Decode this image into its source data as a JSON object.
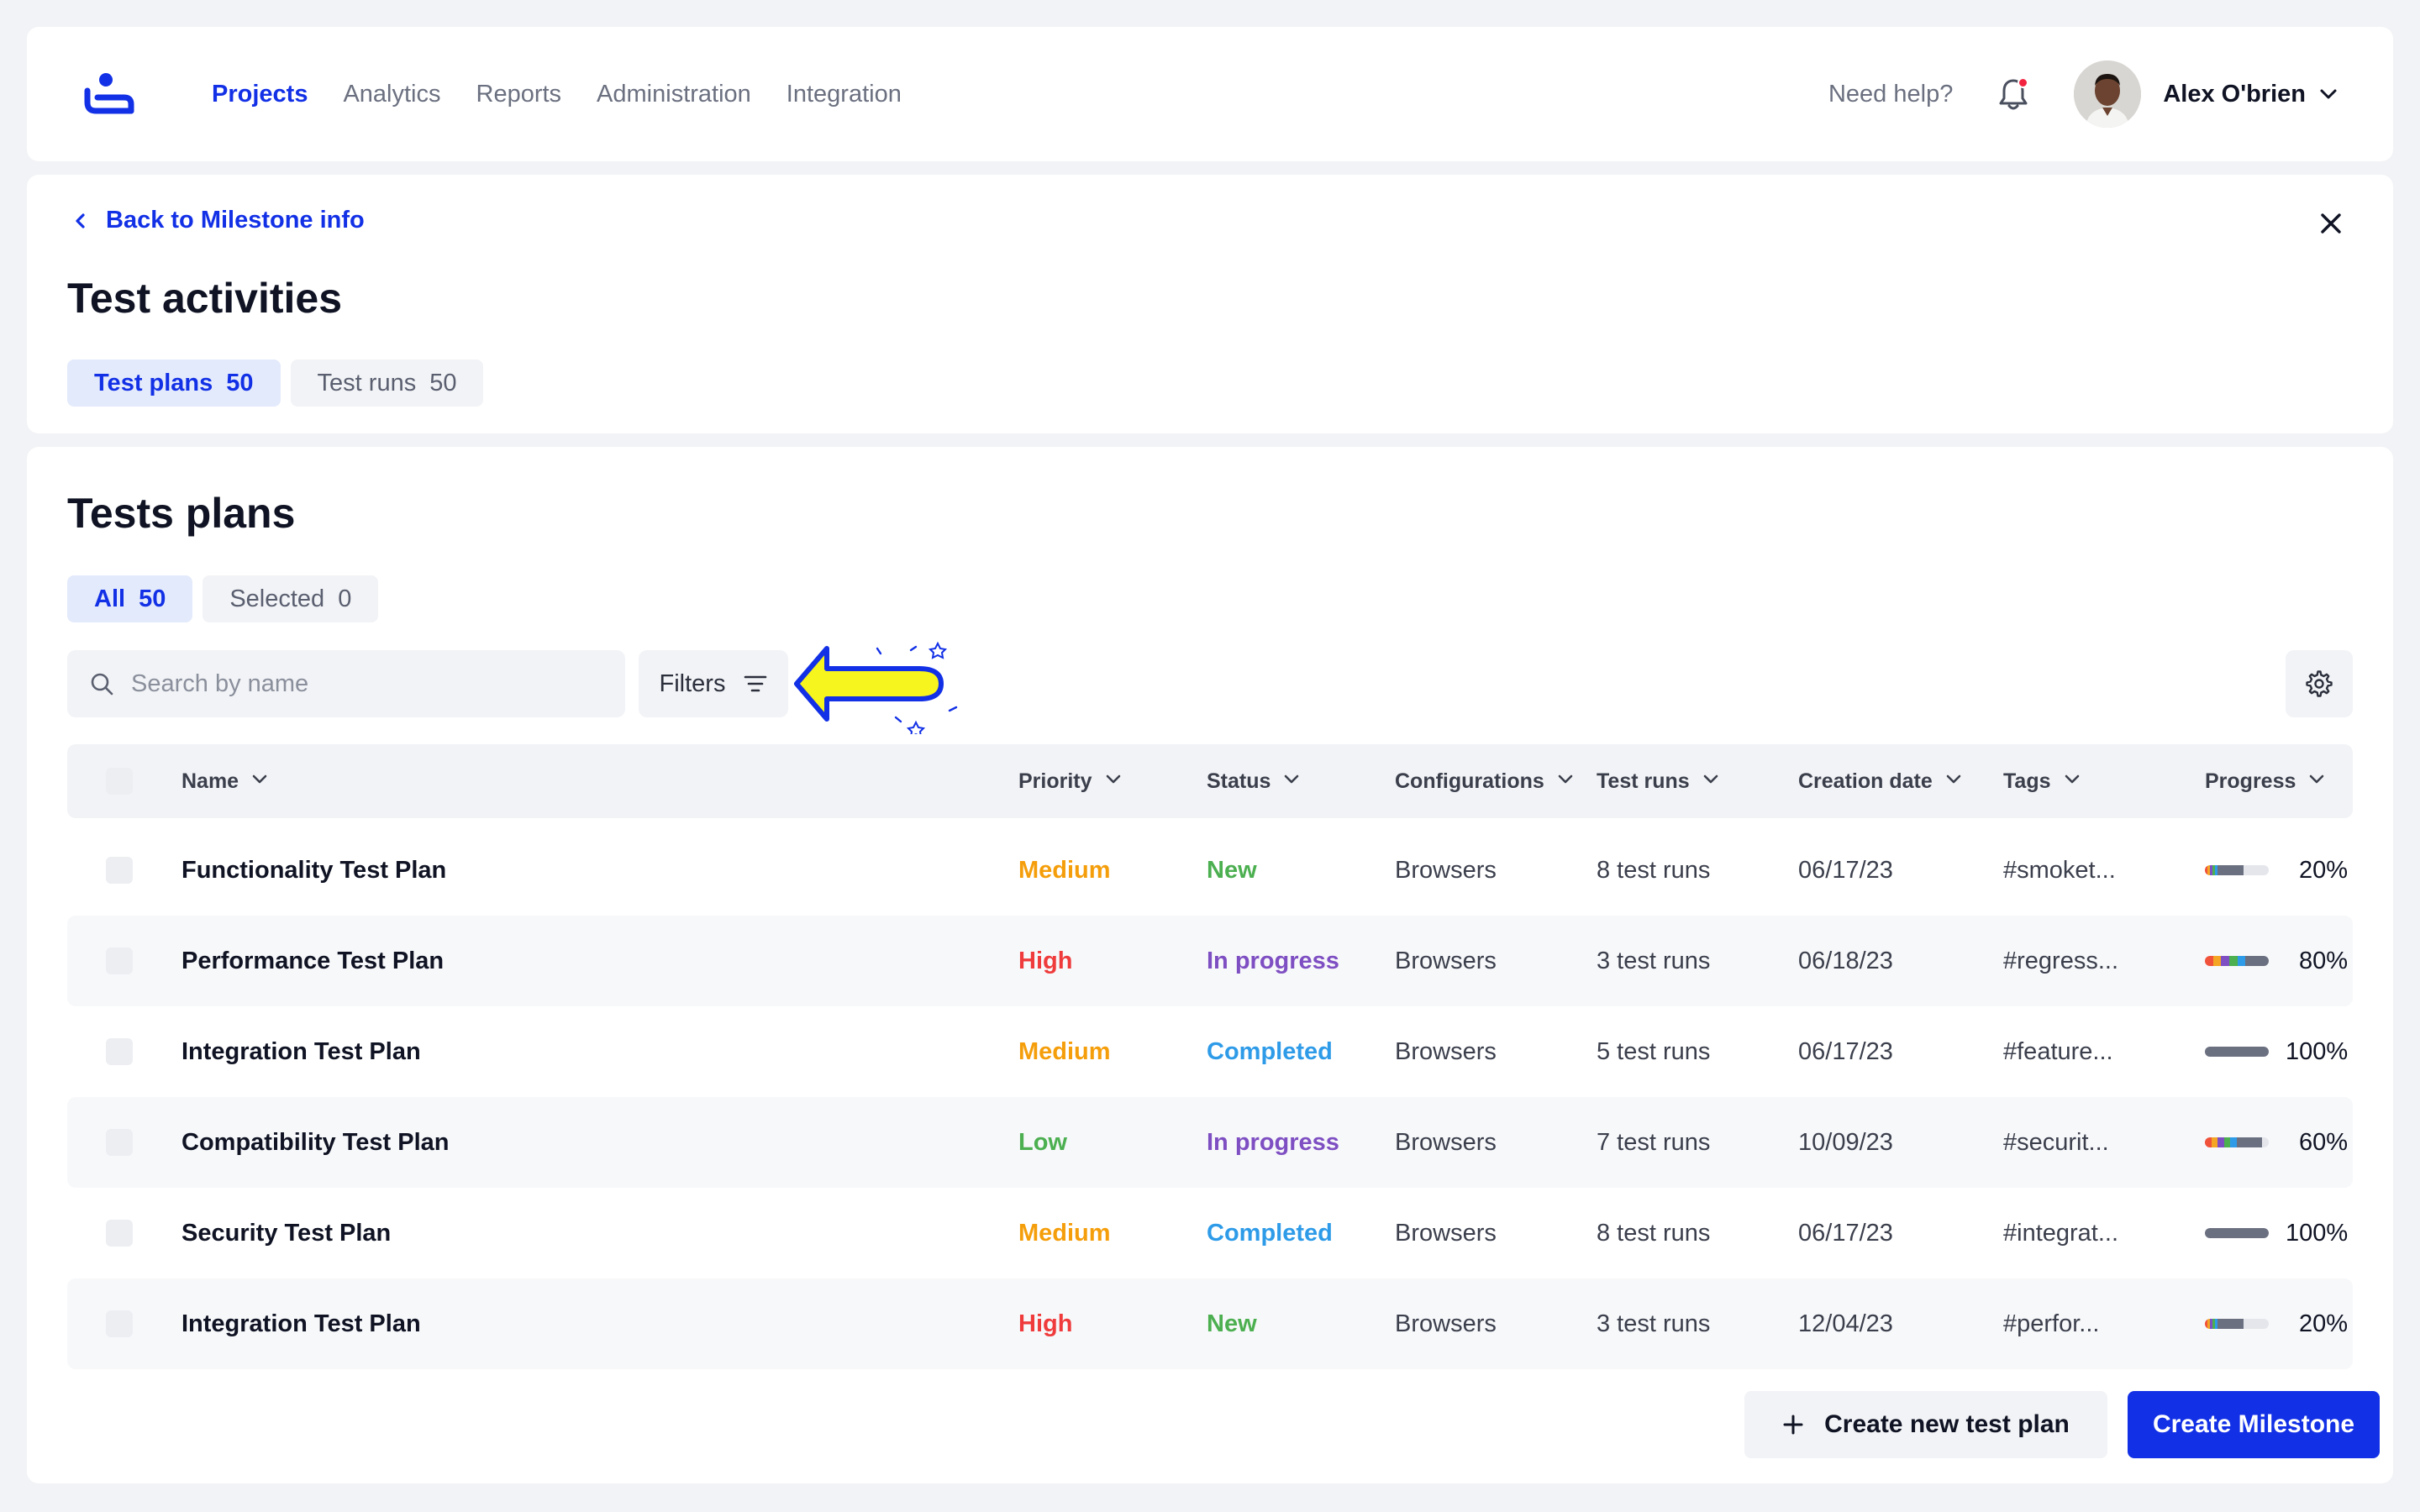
{
  "header": {
    "logo_icon": "brand-logo",
    "nav": [
      {
        "label": "Projects",
        "active": true
      },
      {
        "label": "Analytics",
        "active": false
      },
      {
        "label": "Reports",
        "active": false
      },
      {
        "label": "Administration",
        "active": false
      },
      {
        "label": "Integration",
        "active": false
      }
    ],
    "help_label": "Need help?",
    "bell_icon": "bell-icon",
    "has_notification": true,
    "user_name": "Alex O'brien"
  },
  "activities": {
    "back_label": "Back to Milestone info",
    "title": "Test activities",
    "tabs": [
      {
        "label": "Test plans",
        "count": "50",
        "active": true
      },
      {
        "label": "Test runs",
        "count": "50",
        "active": false
      }
    ]
  },
  "plans": {
    "title": "Tests plans",
    "tabs": [
      {
        "label": "All",
        "count": "50",
        "active": true
      },
      {
        "label": "Selected",
        "count": "0",
        "active": false
      }
    ],
    "search": {
      "placeholder": "Search by name",
      "value": ""
    },
    "filters_label": "Filters",
    "columns": [
      "Name",
      "Priority",
      "Status",
      "Configurations",
      "Test runs",
      "Creation date",
      "Tags",
      "Progress"
    ],
    "rows": [
      {
        "name": "Functionality Test Plan",
        "priority": "Medium",
        "status": "New",
        "config": "Browsers",
        "runs": "8 test runs",
        "date": "06/17/23",
        "tags": "#smoket...",
        "progress": "20%"
      },
      {
        "name": "Performance Test Plan",
        "priority": "High",
        "status": "In progress",
        "config": "Browsers",
        "runs": "3 test runs",
        "date": "06/18/23",
        "tags": "#regress...",
        "progress": "80%"
      },
      {
        "name": "Integration Test Plan",
        "priority": "Medium",
        "status": "Completed",
        "config": "Browsers",
        "runs": "5 test runs",
        "date": "06/17/23",
        "tags": "#feature...",
        "progress": "100%"
      },
      {
        "name": "Compatibility Test Plan",
        "priority": "Low",
        "status": "In progress",
        "config": "Browsers",
        "runs": "7 test runs",
        "date": "10/09/23",
        "tags": "#securit...",
        "progress": "60%"
      },
      {
        "name": "Security Test Plan",
        "priority": "Medium",
        "status": "Completed",
        "config": "Browsers",
        "runs": "8 test runs",
        "date": "06/17/23",
        "tags": "#integrat...",
        "progress": "100%"
      },
      {
        "name": "Integration Test Plan",
        "priority": "High",
        "status": "New",
        "config": "Browsers",
        "runs": "3 test runs",
        "date": "12/04/23",
        "tags": "#perfor...",
        "progress": "20%"
      }
    ],
    "create_plan_label": "Create new test plan",
    "create_milestone_label": "Create Milestone"
  },
  "colors": {
    "accent": "#1230e6",
    "priority": {
      "Medium": "#f59e0b",
      "High": "#ef3b3b",
      "Low": "#4caf50"
    },
    "status": {
      "New": "#4caf50",
      "In progress": "#7e4fc2",
      "Completed": "#2e9be8"
    },
    "hint_arrow": "#f7f51e"
  }
}
